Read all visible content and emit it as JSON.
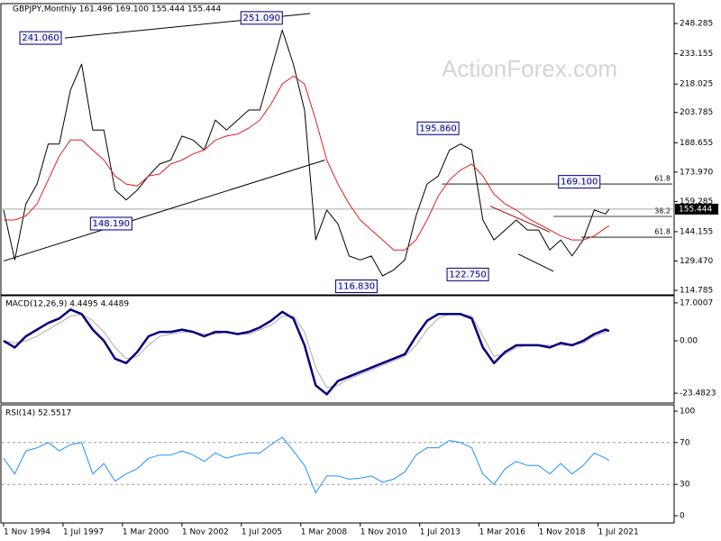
{
  "header": "GBPJPY,Monthly  161.496 169.100 155.444 155.444",
  "watermark": "ActionForex.com",
  "chart_data": [
    {
      "type": "line",
      "xlim": [
        "1994-11",
        "2024-11"
      ],
      "ylim": [
        113,
        257.8
      ],
      "yticks": [
        248.285,
        233.155,
        218.025,
        203.785,
        188.655,
        {
          "value": 173.97,
          "label": "173.970"
        },
        159.285,
        144.155,
        {
          "value": 129.47,
          "label": "129.470"
        },
        114.785
      ],
      "last_price": 155.444,
      "x": [
        "1994-11",
        "1995-05",
        "1995-11",
        "1996-05",
        "1996-11",
        "1997-05",
        "1997-11",
        "1998-05",
        "1998-11",
        "1999-05",
        "1999-11",
        "2000-05",
        "2000-11",
        "2001-05",
        "2001-11",
        "2002-05",
        "2002-11",
        "2003-05",
        "2003-11",
        "2004-05",
        "2004-11",
        "2005-05",
        "2005-11",
        "2006-05",
        "2006-11",
        "2007-05",
        "2007-11",
        "2008-05",
        "2008-11",
        "2009-05",
        "2009-11",
        "2010-05",
        "2010-11",
        "2011-05",
        "2011-11",
        "2012-05",
        "2012-11",
        "2013-05",
        "2013-11",
        "2014-05",
        "2014-11",
        "2015-05",
        "2015-11",
        "2016-05",
        "2016-11",
        "2017-05",
        "2017-11",
        "2018-05",
        "2018-11",
        "2019-05",
        "2019-11",
        "2020-05",
        "2020-11",
        "2021-05",
        "2021-11",
        "2022-01"
      ],
      "series": [
        {
          "color": "#000000",
          "width": 1,
          "values": [
            155,
            130,
            158,
            168,
            188,
            188,
            215,
            228,
            195,
            195,
            165,
            160,
            165,
            172,
            178,
            180,
            192,
            190,
            185,
            200,
            195,
            200,
            205,
            205,
            225,
            245,
            228,
            205,
            140,
            155,
            148,
            132,
            130,
            132,
            122,
            125,
            130,
            152,
            168,
            172,
            185,
            188,
            185,
            150,
            140,
            145,
            150,
            145,
            145,
            135,
            140,
            132,
            140,
            155,
            153,
            155.444
          ]
        },
        {
          "color": "#e02020",
          "width": 1,
          "values": [
            150,
            150,
            152,
            158,
            170,
            182,
            190,
            190,
            185,
            180,
            172,
            168,
            167,
            172,
            173,
            178,
            180,
            183,
            185,
            190,
            192,
            193,
            196,
            200,
            208,
            218,
            222,
            218,
            200,
            180,
            168,
            158,
            150,
            145,
            140,
            135,
            135,
            140,
            150,
            162,
            170,
            175,
            178,
            172,
            163,
            158,
            155,
            151,
            148,
            145,
            142,
            140,
            140,
            142,
            146,
            147
          ]
        }
      ],
      "annotations": [
        {
          "x": "1997-08",
          "value": 241.06,
          "label": "241.060"
        },
        {
          "x": "2007-07",
          "value": 251.09,
          "label": "251.090"
        },
        {
          "x": "2000-10",
          "value": 148.19,
          "label": "148.190"
        },
        {
          "x": "2011-10",
          "value": 116.83,
          "label": "116.830"
        },
        {
          "x": "2015-06",
          "value": 195.86,
          "label": "195.860"
        },
        {
          "x": "2016-10",
          "value": 122.75,
          "label": "122.750"
        },
        {
          "x": "2021-10",
          "value": 169.1,
          "label": "169.100"
        }
      ],
      "levels": [
        {
          "text": "61.8",
          "price": 168.0,
          "from": "2014-07"
        },
        {
          "text": "38.2",
          "price": 151.8,
          "from": "2019-07"
        },
        {
          "text": "61.8",
          "price": 141.4,
          "from": "2020-10"
        }
      ],
      "trendlines": [
        {
          "color": "#000000",
          "from": [
            "1997-08",
            241.06
          ],
          "to": [
            "2008-08",
            253.3
          ]
        },
        {
          "color": "#000000",
          "from": [
            "1994-11",
            129.5
          ],
          "to": [
            "2009-04",
            180
          ]
        },
        {
          "color": "#a00000",
          "from": [
            "2016-09",
            156.9
          ],
          "to": [
            "2019-05",
            144
          ]
        },
        {
          "color": "#000000",
          "from": [
            "2017-12",
            133
          ],
          "to": [
            "2019-07",
            124.3
          ]
        }
      ]
    },
    {
      "type": "line",
      "title": "MACD(12,26,9) 4.4495 4.4489",
      "xlim": [
        "1994-11",
        "2024-11"
      ],
      "ylim": [
        -27.5,
        20.2
      ],
      "yticks": [
        17.0007,
        {
          "value": 0,
          "label": "0.00"
        },
        -23.4823
      ],
      "x": [
        "1994-11",
        "1995-05",
        "1995-11",
        "1996-05",
        "1996-11",
        "1997-05",
        "1997-11",
        "1998-05",
        "1998-11",
        "1999-05",
        "1999-11",
        "2000-05",
        "2000-11",
        "2001-05",
        "2001-11",
        "2002-05",
        "2002-11",
        "2003-05",
        "2003-11",
        "2004-05",
        "2004-11",
        "2005-05",
        "2005-11",
        "2006-05",
        "2006-11",
        "2007-05",
        "2007-11",
        "2008-05",
        "2008-11",
        "2009-05",
        "2009-11",
        "2010-05",
        "2010-11",
        "2011-05",
        "2011-11",
        "2012-05",
        "2012-11",
        "2013-05",
        "2013-11",
        "2014-05",
        "2014-11",
        "2015-05",
        "2015-11",
        "2016-05",
        "2016-11",
        "2017-05",
        "2017-11",
        "2018-05",
        "2018-11",
        "2019-05",
        "2019-11",
        "2020-05",
        "2020-11",
        "2021-05",
        "2021-11",
        "2022-01"
      ],
      "series": [
        {
          "color": "#b8a8a8",
          "width": 1,
          "values": [
            0,
            -1,
            0,
            2,
            5,
            8,
            11,
            12,
            9,
            4,
            -3,
            -8,
            -7,
            -2,
            2,
            3,
            4,
            4,
            3,
            3,
            4,
            3,
            3,
            5,
            7,
            11,
            11,
            4,
            -12,
            -21,
            -20,
            -17,
            -15,
            -13,
            -11,
            -9,
            -7,
            -2,
            5,
            10,
            12,
            12,
            11,
            2,
            -7,
            -6,
            -3,
            -2,
            -2,
            -2,
            -2,
            -2,
            -1,
            2,
            4,
            4.4489
          ]
        },
        {
          "color": "#00007f",
          "width": 2.5,
          "values": [
            0,
            -3,
            2,
            5,
            8,
            10,
            14,
            12,
            5,
            0,
            -8,
            -10,
            -5,
            2,
            4,
            4,
            5,
            4,
            2,
            4,
            4,
            3,
            4,
            6,
            9,
            13,
            10,
            -2,
            -20,
            -24,
            -18,
            -16,
            -14,
            -12,
            -10,
            -8,
            -6,
            2,
            9,
            12,
            12,
            12,
            10,
            -3,
            -10,
            -5,
            -2,
            -2,
            -2,
            -3,
            -1,
            -2,
            0,
            3,
            5,
            4.4495
          ]
        }
      ]
    },
    {
      "type": "line",
      "title": "RSI(14) 52.5517",
      "xlim": [
        "1994-11",
        "2024-11"
      ],
      "ylim": [
        0,
        100
      ],
      "yticks": [
        100,
        70,
        30,
        0
      ],
      "xticks": [
        {
          "value": "1994-11",
          "label": "1 Nov 1994"
        },
        {
          "value": "1997-07",
          "label": "1 Jul 1997"
        },
        {
          "value": "2000-03",
          "label": "1 Mar 2000"
        },
        {
          "value": "2002-11",
          "label": "1 Nov 2002"
        },
        {
          "value": "2005-07",
          "label": "1 Jul 2005"
        },
        {
          "value": "2008-03",
          "label": "1 Mar 2008"
        },
        {
          "value": "2010-11",
          "label": "1 Nov 2010"
        },
        {
          "value": "2013-07",
          "label": "1 Jul 2013"
        },
        {
          "value": "2016-03",
          "label": "1 Mar 2016"
        },
        {
          "value": "2018-11",
          "label": "1 Nov 2018"
        },
        {
          "value": "2021-07",
          "label": "1 Jul 2021"
        }
      ],
      "x": [
        "1994-11",
        "1995-05",
        "1995-11",
        "1996-05",
        "1996-11",
        "1997-05",
        "1997-11",
        "1998-05",
        "1998-11",
        "1999-05",
        "1999-11",
        "2000-05",
        "2000-11",
        "2001-05",
        "2001-11",
        "2002-05",
        "2002-11",
        "2003-05",
        "2003-11",
        "2004-05",
        "2004-11",
        "2005-05",
        "2005-11",
        "2006-05",
        "2006-11",
        "2007-05",
        "2007-11",
        "2008-05",
        "2008-11",
        "2009-05",
        "2009-11",
        "2010-05",
        "2010-11",
        "2011-05",
        "2011-11",
        "2012-05",
        "2012-11",
        "2013-05",
        "2013-11",
        "2014-05",
        "2014-11",
        "2015-05",
        "2015-11",
        "2016-05",
        "2016-11",
        "2017-05",
        "2017-11",
        "2018-05",
        "2018-11",
        "2019-05",
        "2019-11",
        "2020-05",
        "2020-11",
        "2021-05",
        "2021-11",
        "2022-01"
      ],
      "series": [
        {
          "color": "#1e90ff",
          "width": 1,
          "values": [
            55,
            40,
            62,
            65,
            70,
            62,
            68,
            70,
            40,
            50,
            33,
            40,
            45,
            55,
            58,
            58,
            62,
            58,
            52,
            60,
            55,
            58,
            60,
            60,
            68,
            75,
            62,
            48,
            22,
            38,
            38,
            35,
            36,
            38,
            32,
            35,
            42,
            58,
            65,
            65,
            72,
            70,
            65,
            40,
            30,
            45,
            52,
            48,
            48,
            40,
            50,
            40,
            48,
            60,
            55,
            52.5517
          ]
        }
      ]
    }
  ]
}
